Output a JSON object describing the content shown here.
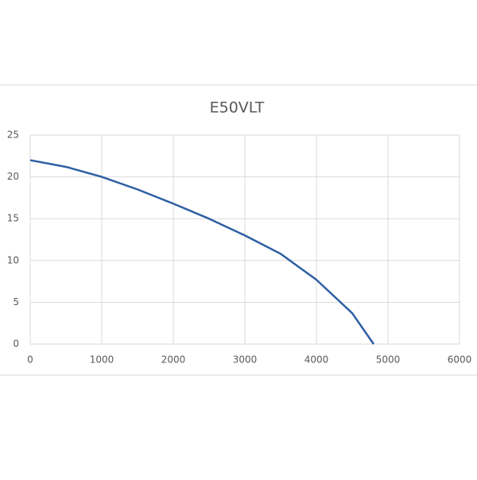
{
  "chart_data": {
    "type": "line",
    "title": "E50VLT",
    "x": [
      0,
      500,
      1000,
      1500,
      2000,
      2500,
      3000,
      3500,
      4000,
      4500,
      4800
    ],
    "series": [
      {
        "color": "#2e5fa3",
        "values": [
          22,
          21.2,
          20,
          18.5,
          16.8,
          15,
          13,
          10.8,
          7.7,
          3.7,
          0
        ]
      }
    ],
    "xlim": [
      0,
      6000
    ],
    "xticks": [
      0,
      1000,
      2000,
      3000,
      4000,
      5000,
      6000
    ],
    "ylim": [
      0,
      25
    ],
    "yticks": [
      0,
      5,
      10,
      15,
      20,
      25
    ],
    "grid": true
  }
}
